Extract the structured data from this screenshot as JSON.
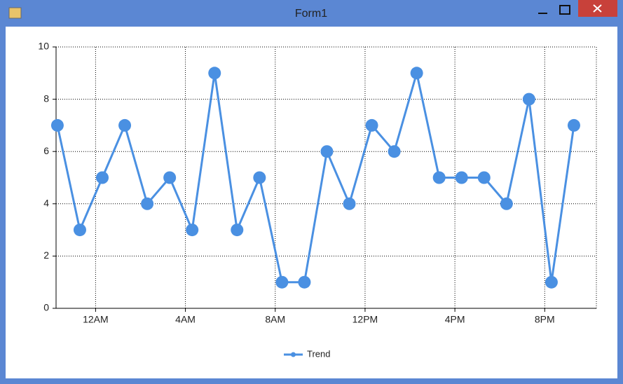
{
  "window": {
    "title": "Form1"
  },
  "chart_data": {
    "type": "line",
    "x": [
      22.3,
      23.3,
      24.3,
      25.3,
      26.3,
      27.3,
      28.3,
      29.3,
      30.3,
      31.3,
      32.3,
      33.3,
      34.3,
      35.3,
      36.3,
      37.3,
      38.3,
      39.3,
      40.3,
      41.3,
      42.3,
      43.3,
      44.3,
      45.3
    ],
    "series": [
      {
        "name": "Trend",
        "color": "#4a90e2",
        "values": [
          7,
          3,
          5,
          7,
          4,
          5,
          3,
          9,
          3,
          5,
          1,
          1,
          6,
          4,
          7,
          6,
          9,
          5,
          5,
          5,
          4,
          8,
          1,
          7
        ]
      }
    ],
    "xlim": [
      22.24,
      46.3
    ],
    "xticks": [
      {
        "value": 24,
        "label": "12AM"
      },
      {
        "value": 28,
        "label": "4AM"
      },
      {
        "value": 32,
        "label": "8AM"
      },
      {
        "value": 36,
        "label": "12PM"
      },
      {
        "value": 40,
        "label": "4PM"
      },
      {
        "value": 44,
        "label": "8PM"
      }
    ],
    "ylim": [
      0,
      10
    ],
    "yticks": [
      0,
      2,
      4,
      6,
      8,
      10
    ],
    "grid": true,
    "legend": "bottom"
  }
}
